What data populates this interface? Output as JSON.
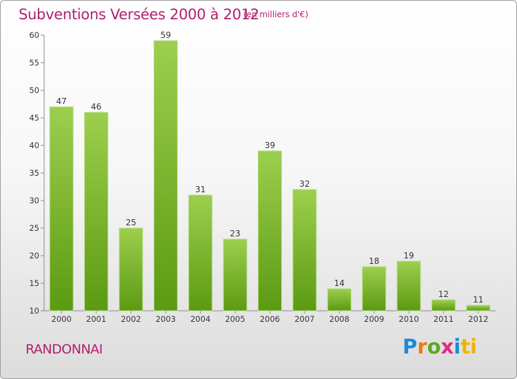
{
  "header": {
    "title": "Subventions Versées 2000 à 2012",
    "subtitle": "(en milliers d'€)"
  },
  "footer": {
    "commune": "RANDONNAI",
    "logo": {
      "letters": [
        "P",
        "r",
        "o",
        "x",
        "i",
        "ti"
      ]
    }
  },
  "colors": {
    "accent": "#b0206e",
    "bar_top": "#9ccf4e",
    "bar_bottom": "#5c9a12"
  },
  "chart_data": {
    "type": "bar",
    "title": "Subventions Versées 2000 à 2012",
    "subtitle": "(en milliers d'€)",
    "xlabel": "",
    "ylabel": "",
    "ylim": [
      10,
      60
    ],
    "yticks": [
      10,
      15,
      20,
      25,
      30,
      35,
      40,
      45,
      50,
      55,
      60
    ],
    "grid": false,
    "categories": [
      "2000",
      "2001",
      "2002",
      "2003",
      "2004",
      "2005",
      "2006",
      "2007",
      "2008",
      "2009",
      "2010",
      "2011",
      "2012"
    ],
    "values": [
      47,
      46,
      25,
      59,
      31,
      23,
      39,
      32,
      14,
      18,
      19,
      12,
      11
    ]
  }
}
